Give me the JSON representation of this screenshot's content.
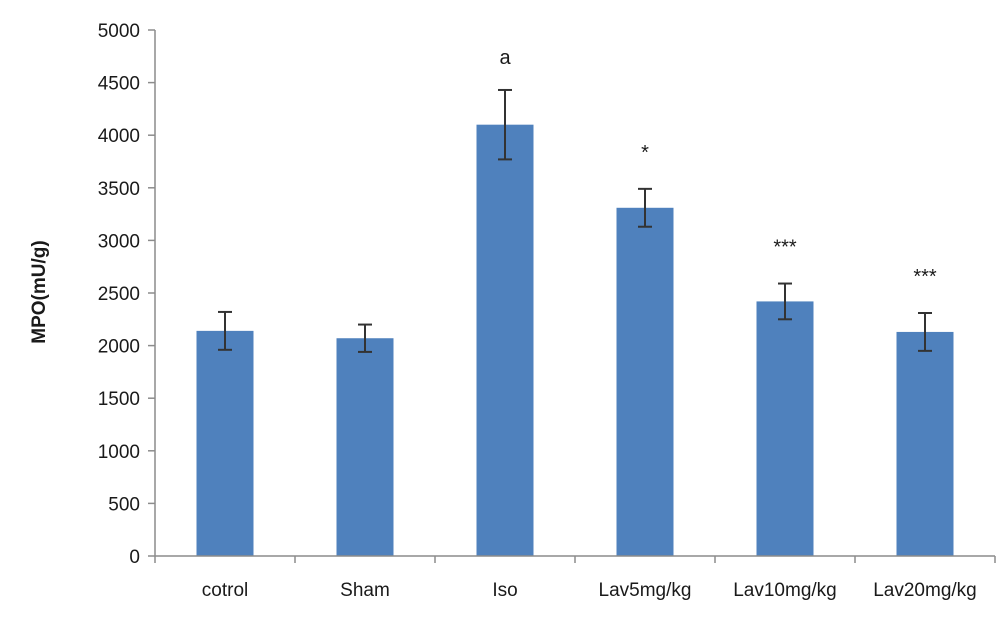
{
  "chart_data": {
    "type": "bar",
    "ylabel": "MPO(mU/g)",
    "xlabel": "",
    "categories": [
      "cotrol",
      "Sham",
      "Iso",
      "Lav5mg/kg",
      "Lav10mg/kg",
      "Lav20mg/kg"
    ],
    "values": [
      2140,
      2070,
      4100,
      3310,
      2420,
      2130
    ],
    "errors": [
      180,
      130,
      330,
      180,
      170,
      180
    ],
    "annotations": [
      "",
      "",
      "a",
      "*",
      "***",
      "***"
    ],
    "ylim": [
      0,
      5000
    ],
    "yticks": [
      "0",
      "500",
      "1000",
      "1500",
      "2000",
      "2500",
      "3000",
      "3500",
      "4000",
      "4500",
      "5000"
    ],
    "grid": false,
    "legend": "none",
    "bar_color": "#4f81bd"
  }
}
